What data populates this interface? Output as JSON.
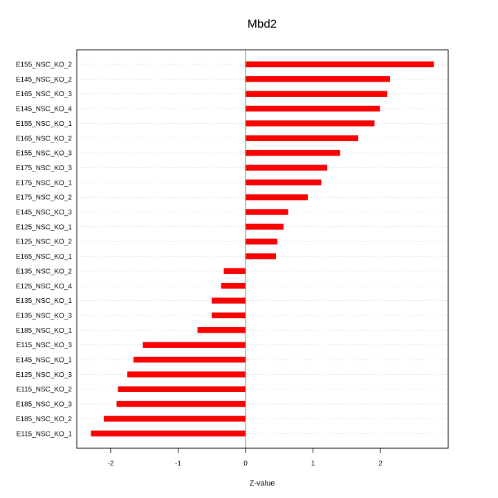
{
  "chart_data": {
    "type": "bar",
    "orientation": "horizontal",
    "title": "Mbd2",
    "xlabel": "Z-value",
    "ylabel": "",
    "xlim": [
      -2.45,
      2.98
    ],
    "x_ticks": [
      -2,
      -1,
      0,
      1,
      2
    ],
    "grid": "horizontal dotted",
    "bar_color": "#ff0000",
    "zero_line_color": "#00cc00",
    "categories": [
      "E155_NSC_KO_2",
      "E145_NSC_KO_2",
      "E165_NSC_KO_3",
      "E145_NSC_KO_4",
      "E155_NSC_KO_1",
      "E165_NSC_KO_2",
      "E155_NSC_KO_3",
      "E175_NSC_KO_3",
      "E175_NSC_KO_1",
      "E175_NSC_KO_2",
      "E145_NSC_KO_3",
      "E125_NSC_KO_1",
      "E125_NSC_KO_2",
      "E165_NSC_KO_1",
      "E135_NSC_KO_2",
      "E125_NSC_KO_4",
      "E135_NSC_KO_1",
      "E135_NSC_KO_3",
      "E185_NSC_KO_1",
      "E115_NSC_KO_3",
      "E145_NSC_KO_1",
      "E125_NSC_KO_3",
      "E115_NSC_KO_2",
      "E185_NSC_KO_3",
      "E185_NSC_KO_2",
      "E115_NSC_KO_1"
    ],
    "values": [
      2.79,
      2.14,
      2.1,
      1.99,
      1.91,
      1.67,
      1.4,
      1.21,
      1.12,
      0.92,
      0.63,
      0.56,
      0.47,
      0.45,
      -0.32,
      -0.36,
      -0.5,
      -0.5,
      -0.71,
      -1.52,
      -1.66,
      -1.75,
      -1.89,
      -1.91,
      -2.1,
      -2.29
    ]
  }
}
